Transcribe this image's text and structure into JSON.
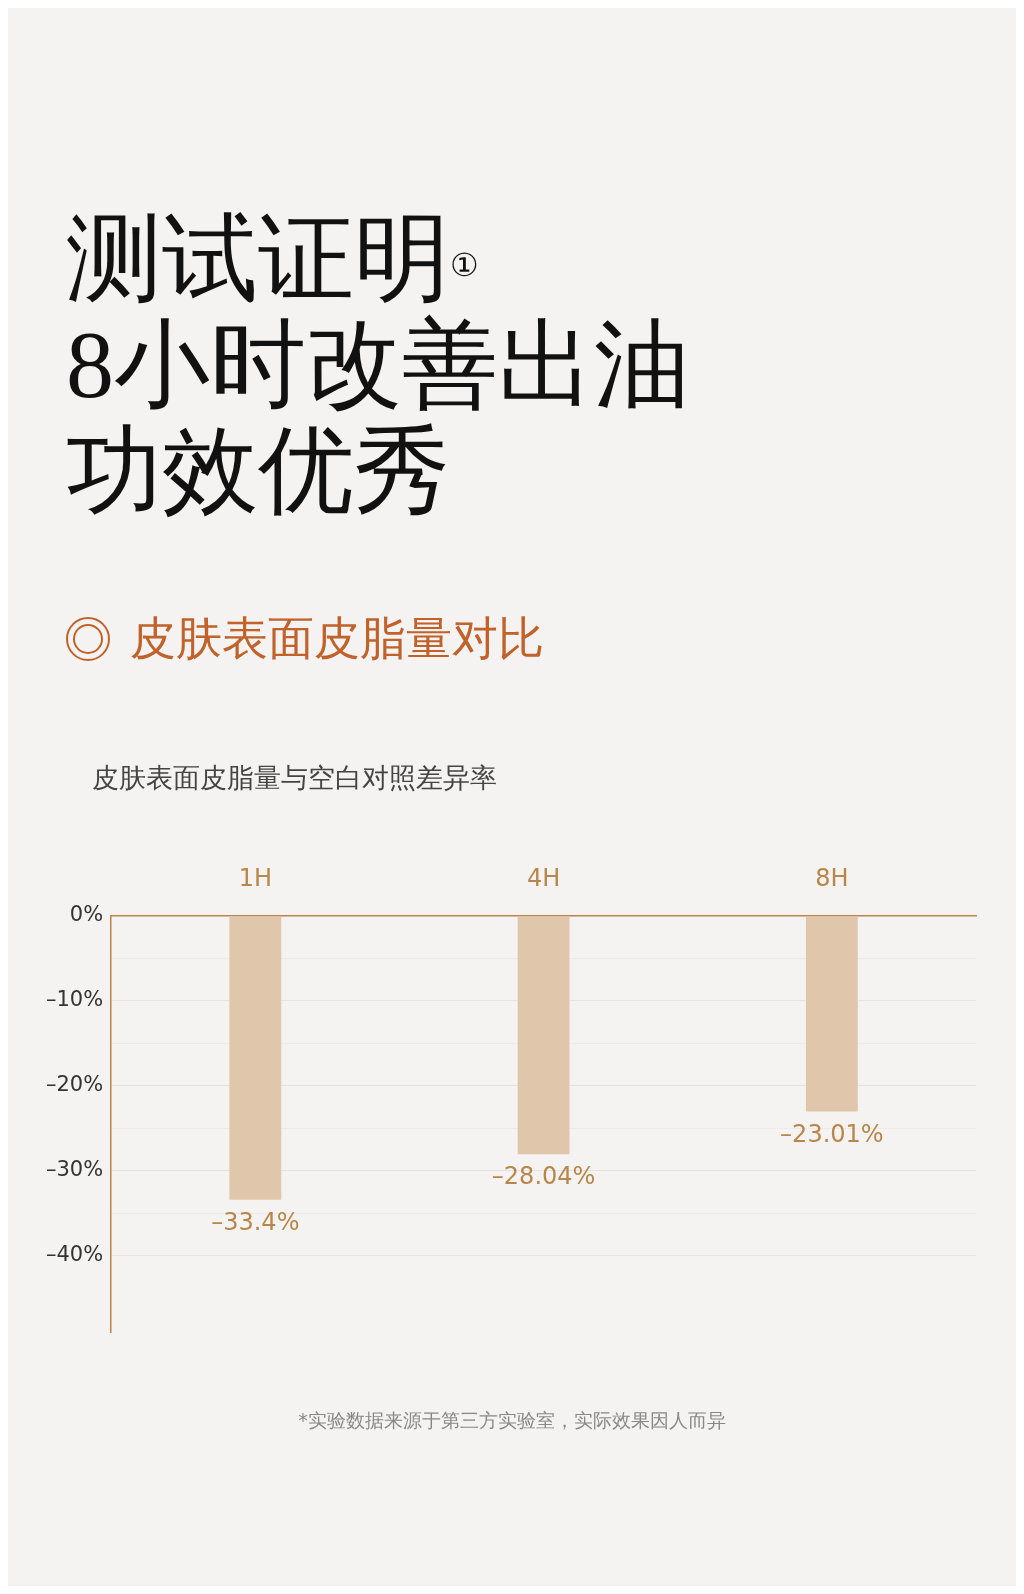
{
  "chart_data": {
    "type": "bar",
    "title": "测试证明$^{①}$",
    "subtitle": "8小时改善出油功效优秀",
    "annotations": [
      "皮肤表面皮脂量对比",
      "皮肤表面皮脂量与空白对照差异率",
      "*实验数据来源于第三方实验室，实际效果因人而异"
    ],
    "categories": [
      "1H",
      "4H",
      "8H"
    ],
    "values": [
      -33.4,
      -28.04,
      -23.01
    ],
    "value_labels": [
      "–33.4%",
      "–28.04%",
      "–23.01%"
    ],
    "color": "#e0c7ac",
    "ylim": [
      -49,
      0
    ],
    "yticks": [
      {
        "value": 0,
        "label": "0%"
      },
      {
        "value": -5,
        "label": null
      },
      {
        "value": -10,
        "label": "–10%"
      },
      {
        "value": -15,
        "label": null
      },
      {
        "value": -20,
        "label": "–20%"
      },
      {
        "value": -25,
        "label": null
      },
      {
        "value": -30,
        "label": "–30%"
      },
      {
        "value": -35,
        "label": null
      },
      {
        "value": -40,
        "label": "–40%"
      }
    ],
    "grid": "y",
    "legend": false
  }
}
